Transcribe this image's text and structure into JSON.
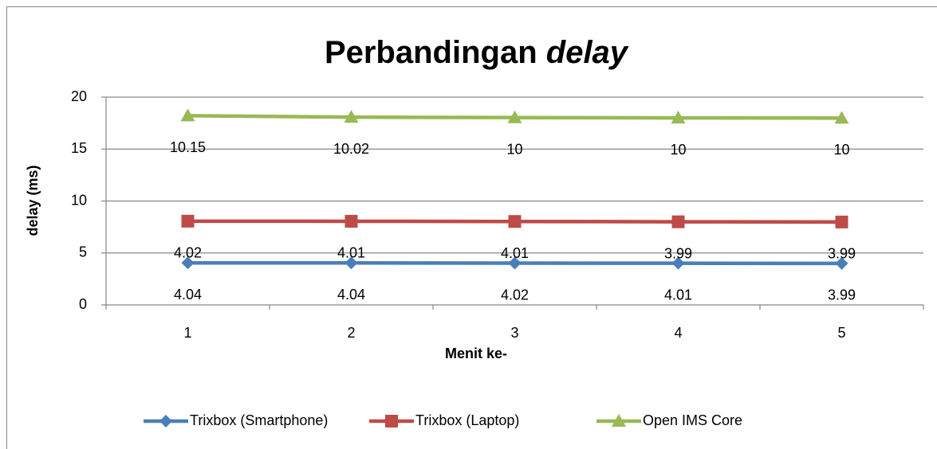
{
  "chart_data": {
    "type": "stacked_line",
    "title": [
      "Perbandingan",
      "delay"
    ],
    "x_label": "Menit ke-",
    "y_label": "delay (ms)",
    "categories": [
      "1",
      "2",
      "3",
      "4",
      "5"
    ],
    "series": [
      {
        "name": "Trixbox (Smartphone)",
        "color": "#4a7ebb",
        "marker": "diamond",
        "values": [
          4.04,
          4.04,
          4.02,
          4.01,
          3.99
        ]
      },
      {
        "name": "Trixbox (Laptop)",
        "color": "#be4b48",
        "marker": "square",
        "values": [
          4.02,
          4.01,
          4.01,
          3.99,
          3.99
        ]
      },
      {
        "name": "Open IMS Core",
        "color": "#98b954",
        "marker": "triangle",
        "values": [
          10.15,
          10.02,
          10,
          10,
          10
        ]
      }
    ],
    "ylim": [
      0,
      20
    ],
    "yticks": [
      0,
      5,
      10,
      15,
      20
    ],
    "grid": true,
    "legend": "bottom"
  }
}
